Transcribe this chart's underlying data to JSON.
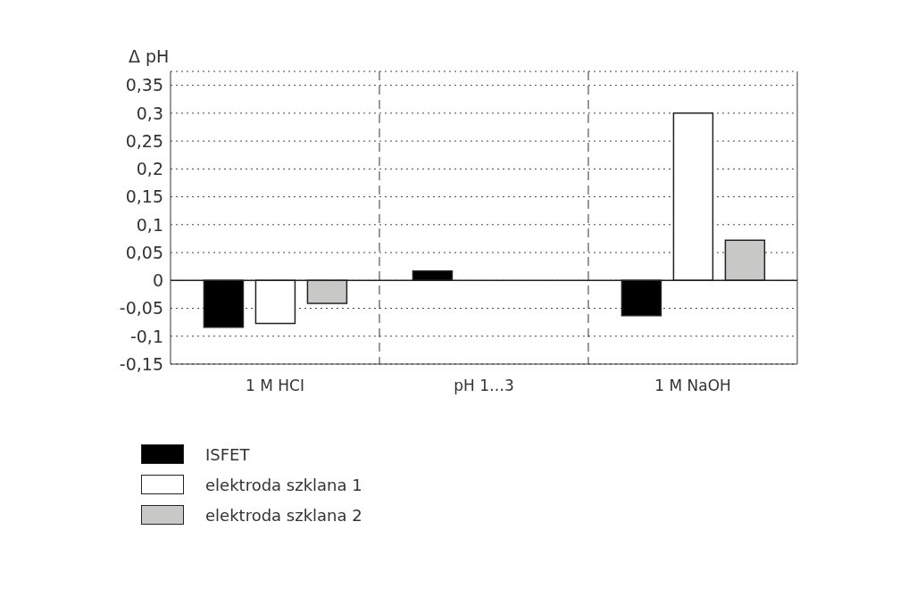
{
  "chart_data": {
    "type": "bar",
    "ylabel": "Δ pH",
    "categories": [
      "1 M HCI",
      "pH 1…3",
      "1 M NaOH"
    ],
    "series": [
      {
        "name": "ISFET",
        "color": "#000000",
        "values": [
          -0.084,
          0.017,
          -0.063
        ]
      },
      {
        "name": "elektroda szklana 1",
        "color": "#ffffff",
        "values": [
          -0.077,
          null,
          0.3
        ]
      },
      {
        "name": "elektroda szklana 2",
        "color": "#c8c8c6",
        "values": [
          -0.041,
          null,
          0.072
        ]
      }
    ],
    "ylim": [
      -0.15,
      0.375
    ],
    "yticks": [
      {
        "value": -0.15,
        "label": "-0,15"
      },
      {
        "value": -0.1,
        "label": "-0,1"
      },
      {
        "value": -0.05,
        "label": "-0,05"
      },
      {
        "value": 0,
        "label": "0"
      },
      {
        "value": 0.05,
        "label": "0,05"
      },
      {
        "value": 0.1,
        "label": "0,1"
      },
      {
        "value": 0.15,
        "label": "0,15"
      },
      {
        "value": 0.2,
        "label": "0,2"
      },
      {
        "value": 0.25,
        "label": "0,25"
      },
      {
        "value": 0.3,
        "label": "0,3"
      },
      {
        "value": 0.35,
        "label": "0,35"
      }
    ],
    "grid": "y",
    "legend": "bottom left"
  }
}
